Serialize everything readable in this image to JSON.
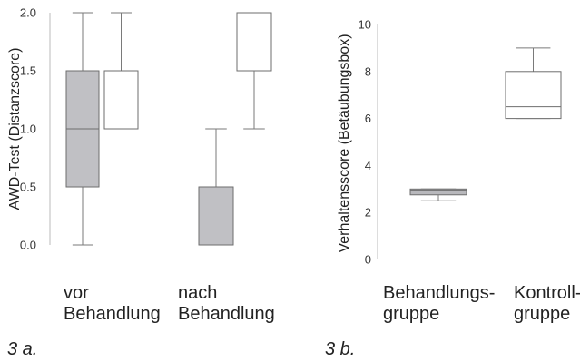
{
  "chart_data": [
    {
      "type": "box",
      "caption": "3 a.",
      "ylabel": "AWD-Test (Distanzscore)",
      "ylim": [
        0,
        2.0
      ],
      "yticks": [
        "0.0",
        "0.5",
        "1.0",
        "1.5",
        "2.0"
      ],
      "groups": [
        {
          "label_line1": "vor",
          "label_line2": "Behandlung"
        },
        {
          "label_line1": "nach",
          "label_line2": "Behandlung"
        }
      ],
      "boxes": [
        {
          "group": 0,
          "fill": "#c0c0c4",
          "whisker_low": 0.0,
          "q1": 0.5,
          "median": 1.0,
          "q3": 1.5,
          "whisker_high": 2.0
        },
        {
          "group": 0,
          "fill": "#ffffff",
          "whisker_low": 1.0,
          "q1": 1.0,
          "median": 1.0,
          "q3": 1.5,
          "whisker_high": 2.0
        },
        {
          "group": 1,
          "fill": "#c0c0c4",
          "whisker_low": 0.0,
          "q1": 0.0,
          "median": 0.0,
          "q3": 0.5,
          "whisker_high": 1.0
        },
        {
          "group": 1,
          "fill": "#ffffff",
          "whisker_low": 1.0,
          "q1": 1.5,
          "median": 1.5,
          "q3": 2.0,
          "whisker_high": 2.0
        }
      ]
    },
    {
      "type": "box",
      "caption": "3 b.",
      "ylabel": "Verhaltensscore (Betäubungsbox)",
      "ylim": [
        0,
        10
      ],
      "yticks": [
        "0",
        "2",
        "4",
        "6",
        "8",
        "10"
      ],
      "groups": [
        {
          "label_line1": "Behandlungs-",
          "label_line2": "gruppe"
        },
        {
          "label_line1": "Kontroll-",
          "label_line2": "gruppe"
        }
      ],
      "boxes": [
        {
          "group": 0,
          "fill": "#b8b8bc",
          "whisker_low": 2.5,
          "q1": 2.75,
          "median": 2.95,
          "q3": 3.0,
          "whisker_high": 3.0
        },
        {
          "group": 1,
          "fill": "#ffffff",
          "whisker_low": 6.0,
          "q1": 6.0,
          "median": 6.5,
          "q3": 8.0,
          "whisker_high": 9.0
        }
      ]
    }
  ]
}
